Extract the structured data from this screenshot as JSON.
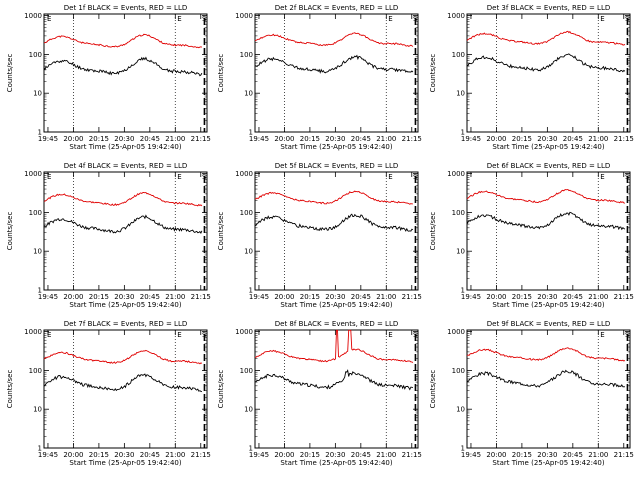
{
  "chart_data": [
    {
      "type": "line",
      "title": "Det 1f BLACK = Events, RED = LLD",
      "xlabel": "Start Time (25-Apr-05 19:42:40)",
      "ylabel": "Counts/sec",
      "markers": [
        "E",
        "E",
        "S"
      ],
      "glitch": false
    },
    {
      "type": "line",
      "title": "Det 2f BLACK = Events, RED = LLD",
      "xlabel": "Start Time (25-Apr-05 19:42:40)",
      "ylabel": "Counts/sec",
      "markers": [
        "E",
        "S"
      ],
      "glitch": false
    },
    {
      "type": "line",
      "title": "Det 3f BLACK = Events, RED = LLD",
      "xlabel": "Start Time (25-Apr-05 19:42:40)",
      "ylabel": "Counts/sec",
      "markers": [
        "E",
        "S"
      ],
      "glitch": false
    },
    {
      "type": "line",
      "title": "Det 4f BLACK = Events, RED = LLD",
      "xlabel": "Start Time (25-Apr-05 19:42:40)",
      "ylabel": "Counts/sec",
      "markers": [
        "E",
        "E",
        "S"
      ],
      "glitch": false
    },
    {
      "type": "line",
      "title": "Det 5f BLACK = Events, RED = LLD",
      "xlabel": "Start Time (25-Apr-05 19:42:40)",
      "ylabel": "Counts/sec",
      "markers": [
        "E",
        "S"
      ],
      "glitch": false
    },
    {
      "type": "line",
      "title": "Det 6f BLACK = Events, RED = LLD",
      "xlabel": "Start Time (25-Apr-05 19:42:40)",
      "ylabel": "Counts/sec",
      "markers": [
        "E",
        "S"
      ],
      "glitch": false
    },
    {
      "type": "line",
      "title": "Det 7f BLACK = Events, RED = LLD",
      "xlabel": "Start Time (25-Apr-05 19:42:40)",
      "ylabel": "Counts/sec",
      "markers": [
        "E",
        "E",
        "S"
      ],
      "glitch": false
    },
    {
      "type": "line",
      "title": "Det 8f BLACK = Events, RED = LLD",
      "xlabel": "Start Time (25-Apr-05 19:42:40)",
      "ylabel": "Counts/sec",
      "markers": [
        "E",
        "S"
      ],
      "glitch": true
    },
    {
      "type": "line",
      "title": "Det 9f BLACK = Events, RED = LLD",
      "xlabel": "Start Time (25-Apr-05 19:42:40)",
      "ylabel": "Counts/sec",
      "markers": [
        "E",
        "S"
      ],
      "glitch": false
    }
  ],
  "axes": {
    "x_tick_labels": [
      "19:45",
      "20:00",
      "20:15",
      "20:30",
      "20:45",
      "21:00",
      "21:15"
    ],
    "x_tick_minutes": [
      2.33,
      17.33,
      32.33,
      47.33,
      62.33,
      77.33,
      92.33
    ],
    "x_range_minutes": [
      0,
      96
    ],
    "y_tick_labels": [
      "1",
      "10",
      "100",
      "1000"
    ],
    "y_tick_values": [
      1,
      10,
      100,
      1000
    ],
    "ylim": [
      1,
      1100
    ],
    "yscale": "log",
    "dotted_lines_minutes": [
      17.3,
      77.3
    ],
    "dashed_line_minute": 94.5
  },
  "series_colors": {
    "events": "#000000",
    "lld": "#e00000"
  },
  "series_names": [
    "BLACK = Events",
    "RED = LLD"
  ]
}
